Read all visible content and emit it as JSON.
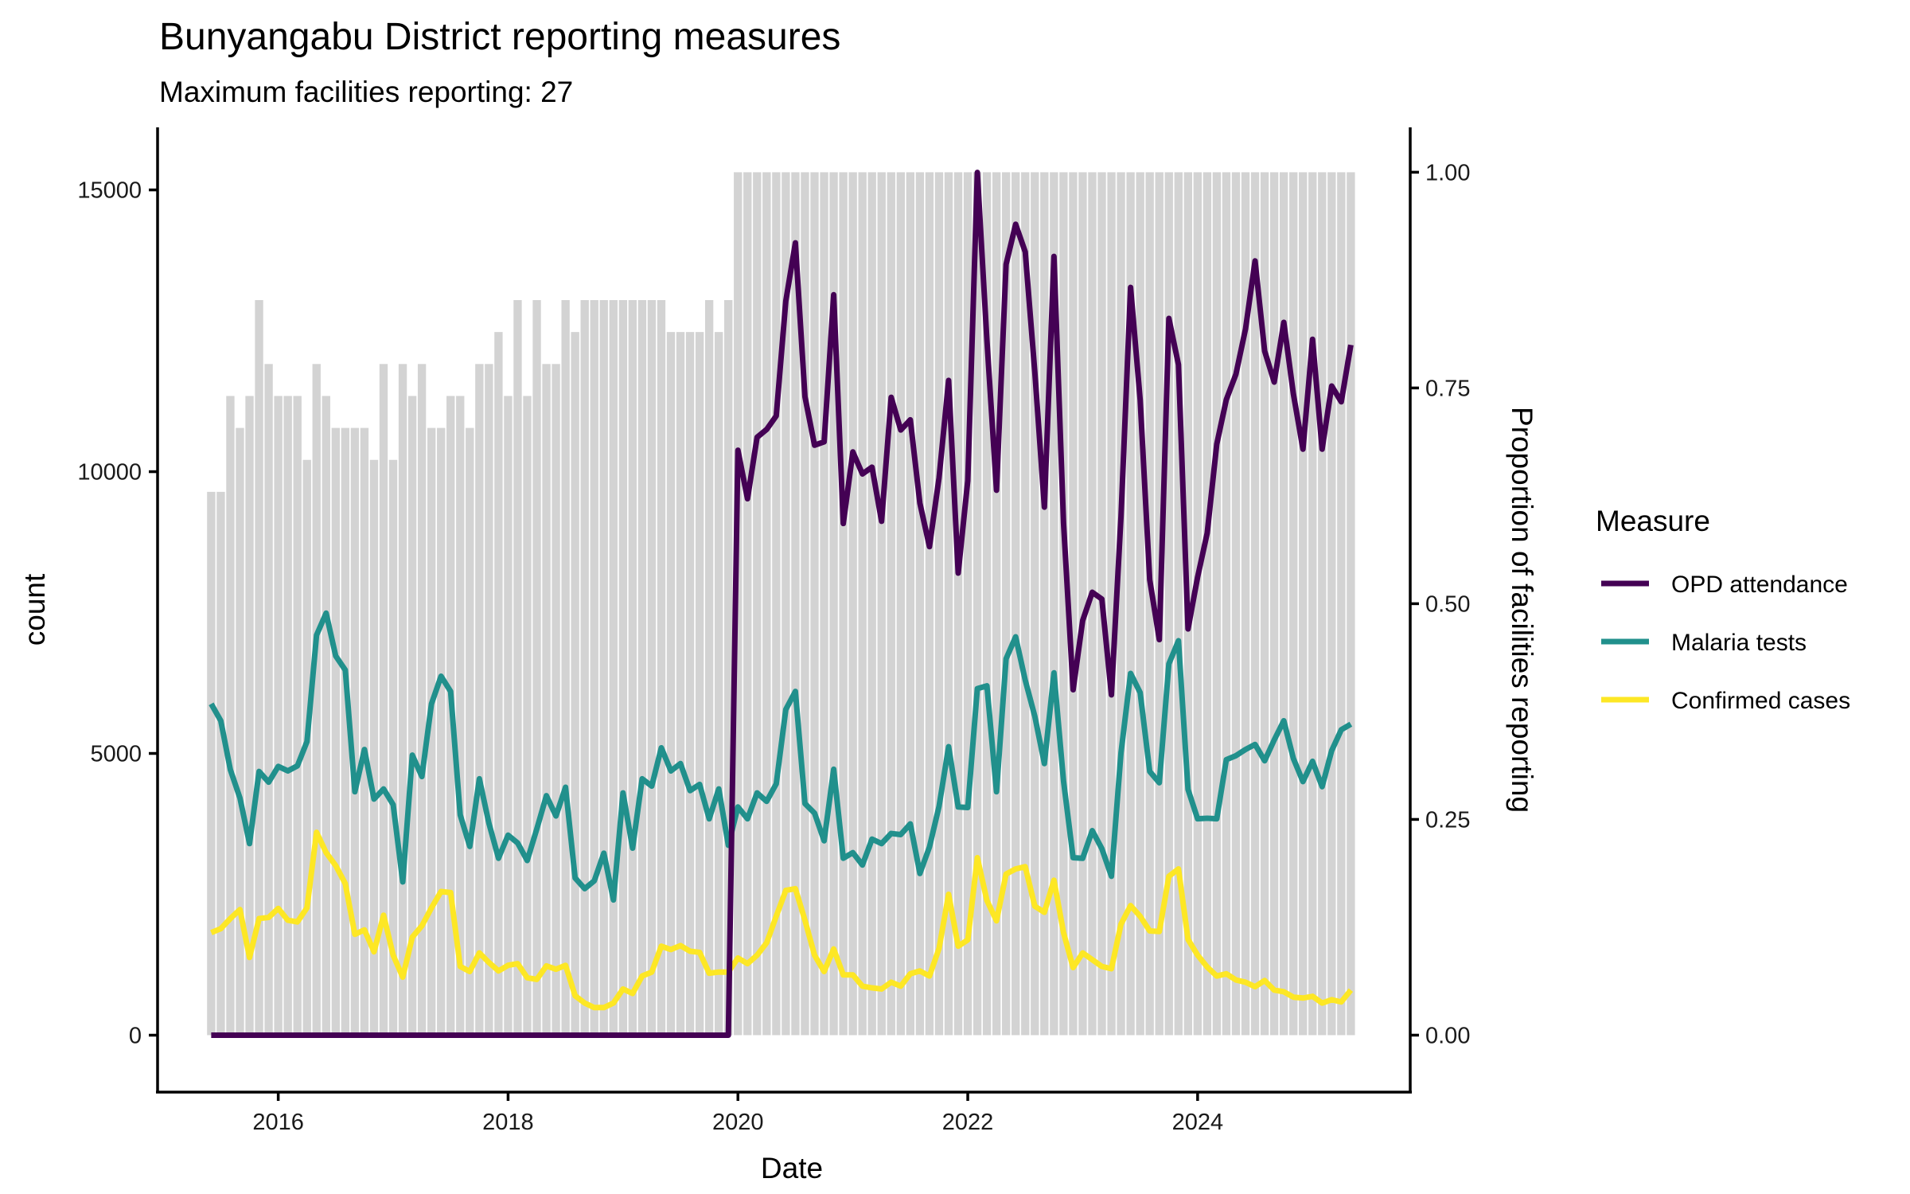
{
  "chart_data": {
    "type": "line",
    "title": "Bunyangabu District reporting measures",
    "subtitle": "Maximum facilities reporting: 27",
    "xlabel": "Date",
    "ylabel": "count",
    "y2label": "Proportion of facilities reporting",
    "x_start": "2015-06",
    "x_end": "2025-05",
    "x_frequency": "monthly",
    "xlim": [
      2014.95,
      2025.85
    ],
    "ylim": [
      -1010,
      16110
    ],
    "y2lim": [
      -0.066,
      1.052
    ],
    "x_ticks": [
      2016,
      2018,
      2020,
      2022,
      2024
    ],
    "x_tick_labels": [
      "2016",
      "2018",
      "2020",
      "2022",
      "2024"
    ],
    "y_ticks": [
      0,
      5000,
      10000,
      15000
    ],
    "y_tick_labels": [
      "0",
      "5000",
      "10000",
      "15000"
    ],
    "y2_ticks": [
      0,
      0.25,
      0.5,
      0.75,
      1.0
    ],
    "y2_tick_labels": [
      "0.00",
      "0.25",
      "0.50",
      "0.75",
      "1.00"
    ],
    "grid": false,
    "legend": {
      "title": "Measure",
      "position": "right"
    },
    "bars": {
      "name": "Proportion of facilities reporting",
      "axis": "right",
      "color": "#D3D3D3",
      "max_facilities": 27,
      "facilities_reporting": [
        17,
        17,
        20,
        19,
        20,
        23,
        21,
        20,
        20,
        20,
        18,
        21,
        20,
        19,
        19,
        19,
        19,
        18,
        21,
        18,
        21,
        20,
        21,
        19,
        19,
        20,
        20,
        19,
        21,
        21,
        22,
        20,
        23,
        20,
        23,
        21,
        21,
        23,
        22,
        23,
        23,
        23,
        23,
        23,
        23,
        23,
        23,
        23,
        22,
        22,
        22,
        22,
        23,
        22,
        23,
        27,
        27,
        27,
        27,
        27,
        27,
        27,
        27,
        27,
        27,
        27,
        27,
        27,
        27,
        27,
        27,
        27,
        27,
        27,
        27,
        27,
        27,
        27,
        27,
        27,
        27,
        27,
        27,
        27,
        27,
        27,
        27,
        27,
        27,
        27,
        27,
        27,
        27,
        27,
        27,
        27,
        27,
        27,
        27,
        27,
        27,
        27,
        27,
        27,
        27,
        27,
        27,
        27,
        27,
        27,
        27,
        27,
        27,
        27,
        27,
        27,
        27,
        27,
        27,
        27
      ]
    },
    "series": [
      {
        "name": "OPD attendance",
        "color": "#440154",
        "values": [
          0,
          0,
          0,
          0,
          0,
          0,
          0,
          0,
          0,
          0,
          0,
          0,
          0,
          0,
          0,
          0,
          0,
          0,
          0,
          0,
          0,
          0,
          0,
          0,
          0,
          0,
          0,
          0,
          0,
          0,
          0,
          0,
          0,
          0,
          0,
          0,
          0,
          0,
          0,
          0,
          0,
          0,
          0,
          0,
          0,
          0,
          0,
          0,
          0,
          0,
          0,
          0,
          0,
          0,
          0,
          10380,
          9520,
          10610,
          10750,
          10990,
          13030,
          14060,
          11330,
          10470,
          10530,
          13140,
          9080,
          10350,
          9960,
          10080,
          9120,
          11320,
          10740,
          10920,
          9440,
          8670,
          9890,
          11620,
          8200,
          9840,
          15310,
          12330,
          9670,
          13680,
          14390,
          13900,
          11770,
          9370,
          13820,
          9090,
          6130,
          7360,
          7860,
          7740,
          6040,
          9200,
          13270,
          11280,
          8080,
          7020,
          12720,
          11900,
          7210,
          8130,
          8910,
          10490,
          11280,
          11730,
          12530,
          13740,
          12140,
          11590,
          12650,
          11380,
          10400,
          12350,
          10400,
          11520,
          11240,
          12250
        ]
      },
      {
        "name": "Malaria tests",
        "color": "#21908C",
        "values": [
          5880,
          5580,
          4710,
          4210,
          3400,
          4680,
          4490,
          4770,
          4690,
          4780,
          5210,
          7100,
          7490,
          6730,
          6480,
          4320,
          5070,
          4190,
          4370,
          4090,
          2720,
          4970,
          4590,
          5880,
          6370,
          6100,
          3910,
          3350,
          4550,
          3760,
          3140,
          3550,
          3410,
          3100,
          3660,
          4250,
          3890,
          4400,
          2790,
          2600,
          2740,
          3230,
          2400,
          4300,
          3320,
          4550,
          4420,
          5100,
          4690,
          4820,
          4340,
          4450,
          3840,
          4370,
          3370,
          4050,
          3840,
          4300,
          4150,
          4460,
          5780,
          6100,
          4110,
          3940,
          3450,
          4720,
          3140,
          3240,
          3020,
          3480,
          3400,
          3580,
          3560,
          3750,
          2870,
          3340,
          4060,
          5120,
          4050,
          4040,
          6150,
          6200,
          4320,
          6680,
          7070,
          6300,
          5660,
          4820,
          6430,
          4510,
          3150,
          3140,
          3630,
          3310,
          2820,
          5010,
          6420,
          6080,
          4680,
          4480,
          6590,
          7000,
          4360,
          3840,
          3850,
          3840,
          4890,
          4960,
          5070,
          5160,
          4870,
          5240,
          5580,
          4910,
          4500,
          4860,
          4410,
          5050,
          5420,
          5520
        ]
      },
      {
        "name": "Confirmed cases",
        "color": "#FDE725",
        "values": [
          1820,
          1890,
          2070,
          2230,
          1380,
          2070,
          2090,
          2250,
          2040,
          2010,
          2260,
          3600,
          3240,
          3010,
          2690,
          1790,
          1870,
          1480,
          2130,
          1420,
          1030,
          1740,
          1940,
          2260,
          2550,
          2530,
          1220,
          1130,
          1460,
          1290,
          1140,
          1240,
          1270,
          1020,
          990,
          1230,
          1170,
          1240,
          700,
          570,
          490,
          490,
          570,
          820,
          740,
          1050,
          1120,
          1580,
          1520,
          1590,
          1490,
          1470,
          1100,
          1120,
          1120,
          1370,
          1270,
          1420,
          1640,
          2110,
          2570,
          2600,
          2040,
          1420,
          1130,
          1530,
          1070,
          1070,
          870,
          840,
          820,
          940,
          870,
          1090,
          1140,
          1050,
          1540,
          2500,
          1580,
          1690,
          3150,
          2390,
          2030,
          2860,
          2950,
          2990,
          2290,
          2180,
          2750,
          1820,
          1200,
          1460,
          1340,
          1220,
          1180,
          1970,
          2300,
          2110,
          1850,
          1840,
          2820,
          2950,
          1700,
          1420,
          1210,
          1050,
          1090,
          980,
          940,
          860,
          970,
          800,
          770,
          675,
          660,
          690,
          570,
          630,
          590,
          800
        ]
      }
    ]
  }
}
